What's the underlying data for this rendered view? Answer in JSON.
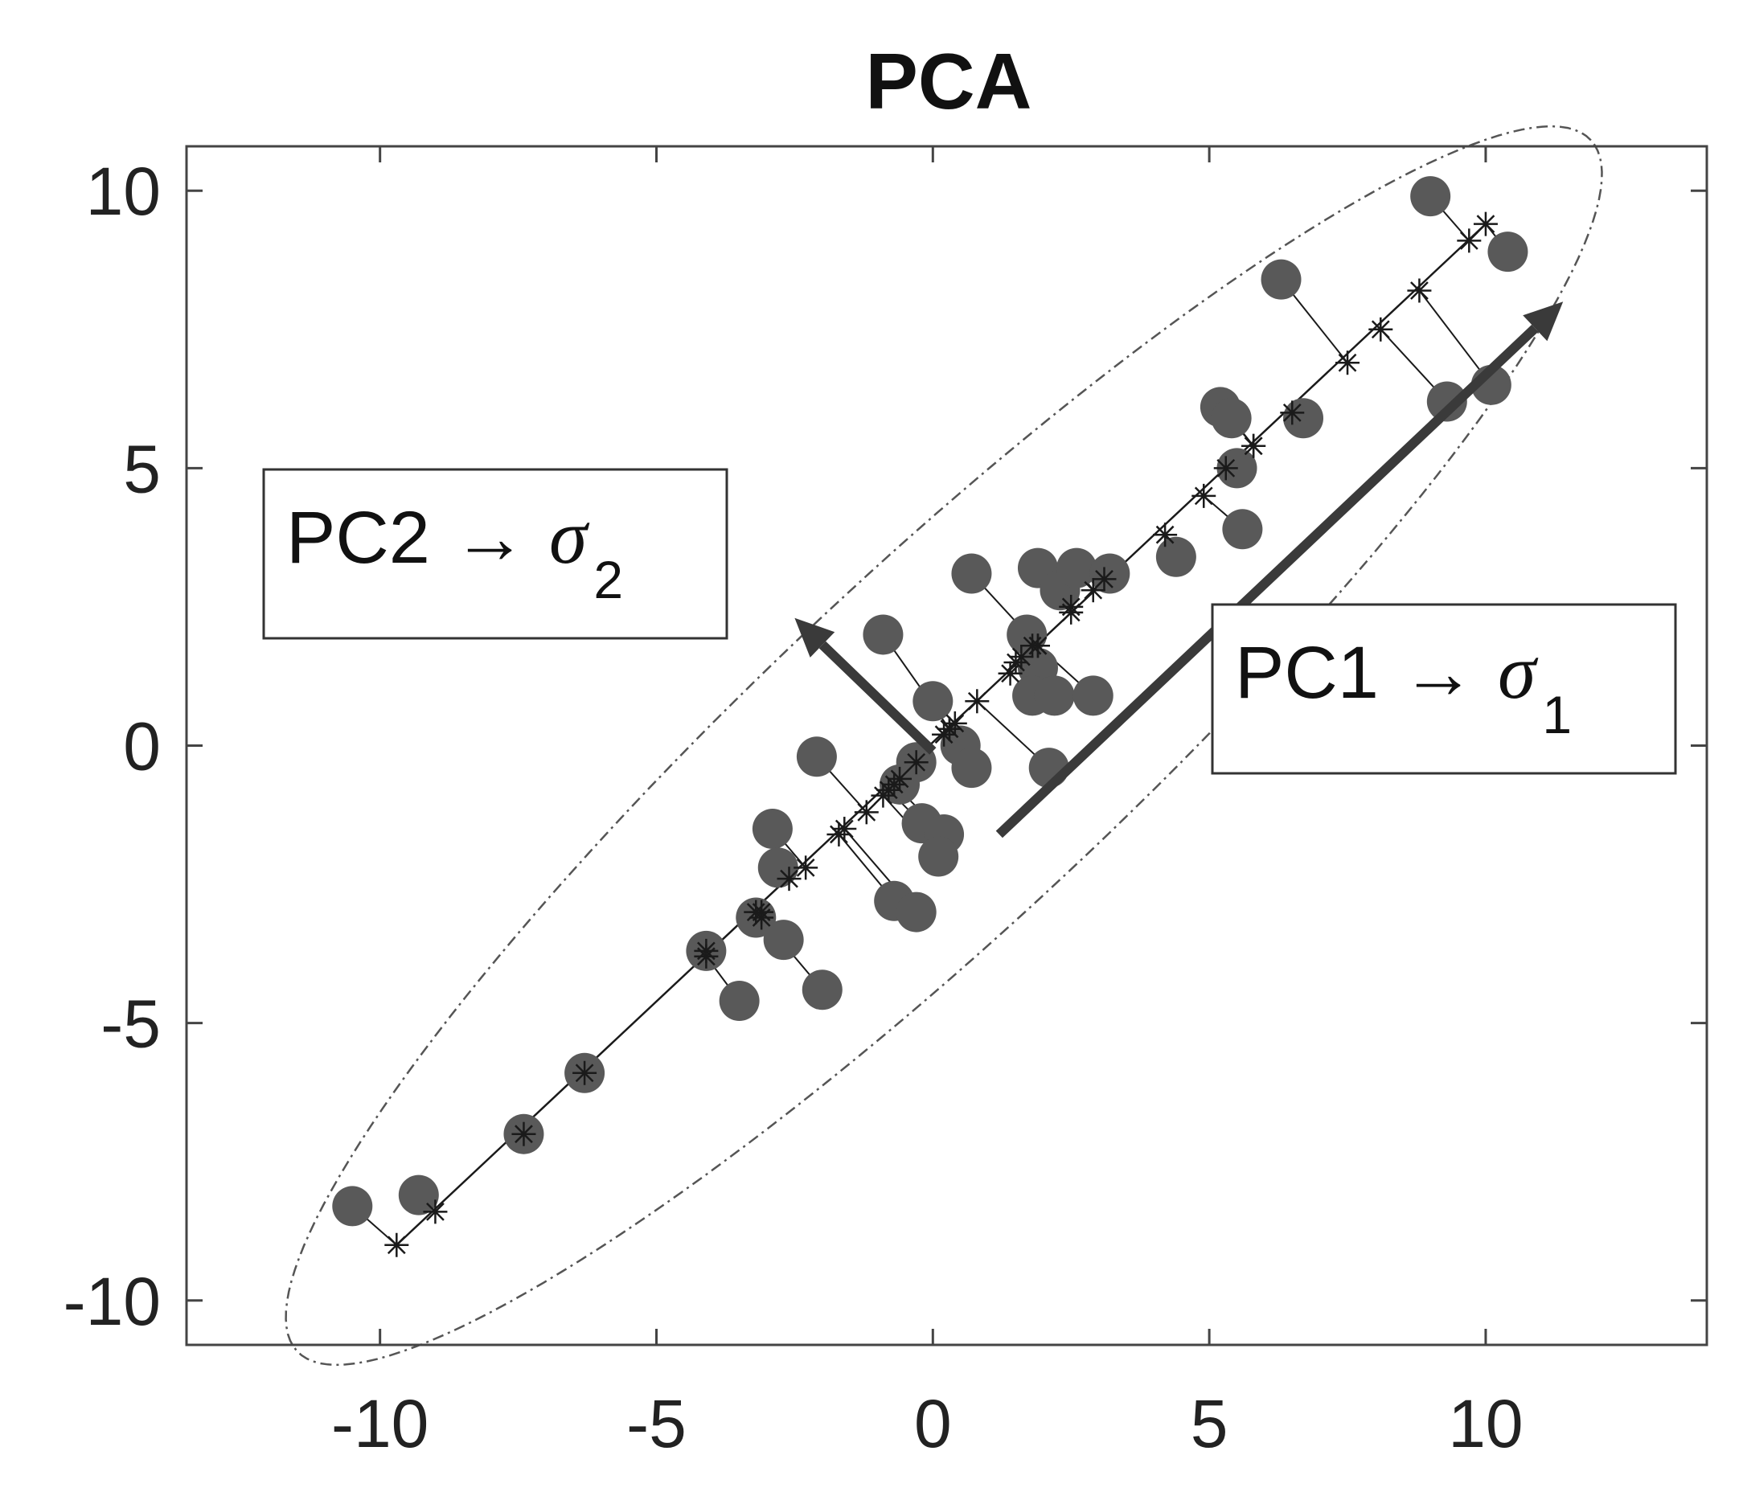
{
  "chart_data": {
    "type": "scatter",
    "title": "PCA",
    "xlabel": "",
    "ylabel": "",
    "xlim": [
      -13.5,
      14
    ],
    "ylim": [
      -10.8,
      10.8
    ],
    "xticks": [
      -10,
      -5,
      0,
      5,
      10
    ],
    "yticks": [
      -10,
      -5,
      0,
      5,
      10
    ],
    "xtick_labels": [
      "-10",
      "-5",
      "0",
      "5",
      "10"
    ],
    "ytick_labels": [
      "-10",
      "-5",
      "0",
      "5",
      "10"
    ],
    "grid": false,
    "colors": {
      "points": "#595959",
      "projection": "#1a1a1a",
      "arrows": "#3a3a3a",
      "ellipse": "#555555",
      "axes": "#444444"
    },
    "points": [
      {
        "x": -10.5,
        "y": -8.3,
        "px": -9.7,
        "py": -9.0
      },
      {
        "x": -9.3,
        "y": -8.1,
        "px": -9.0,
        "py": -8.4
      },
      {
        "x": -7.4,
        "y": -7.0,
        "px": -7.4,
        "py": -7.0
      },
      {
        "x": -6.3,
        "y": -5.9,
        "px": -6.3,
        "py": -5.9
      },
      {
        "x": -4.1,
        "y": -3.7,
        "px": -4.1,
        "py": -3.7
      },
      {
        "x": -3.5,
        "y": -4.6,
        "px": -4.1,
        "py": -3.8
      },
      {
        "x": -3.2,
        "y": -3.1,
        "px": -3.2,
        "py": -3.0
      },
      {
        "x": -2.9,
        "y": -1.5,
        "px": -2.3,
        "py": -2.2
      },
      {
        "x": -2.8,
        "y": -2.2,
        "px": -2.6,
        "py": -2.4
      },
      {
        "x": -2.7,
        "y": -3.5,
        "px": -3.1,
        "py": -3.0
      },
      {
        "x": -2.0,
        "y": -4.4,
        "px": -3.1,
        "py": -3.1
      },
      {
        "x": -2.1,
        "y": -0.2,
        "px": -1.2,
        "py": -1.2
      },
      {
        "x": -0.9,
        "y": 2.0,
        "px": 0.3,
        "py": 0.3
      },
      {
        "x": -0.6,
        "y": -0.7,
        "px": -0.6,
        "py": -0.6
      },
      {
        "x": -0.3,
        "y": -0.3,
        "px": -0.3,
        "py": -0.3
      },
      {
        "x": -0.7,
        "y": -2.8,
        "px": -1.7,
        "py": -1.6
      },
      {
        "x": -0.3,
        "y": -3.0,
        "px": -1.6,
        "py": -1.5
      },
      {
        "x": -0.2,
        "y": -1.4,
        "px": -0.8,
        "py": -0.8
      },
      {
        "x": 0.2,
        "y": -1.6,
        "px": -0.7,
        "py": -0.7
      },
      {
        "x": 0.1,
        "y": -2.0,
        "px": -0.9,
        "py": -0.9
      },
      {
        "x": 0.0,
        "y": 0.8,
        "px": 0.4,
        "py": 0.4
      },
      {
        "x": 0.5,
        "y": 0.0,
        "px": 0.3,
        "py": 0.3
      },
      {
        "x": 0.7,
        "y": -0.4,
        "px": 0.2,
        "py": 0.2
      },
      {
        "x": 0.7,
        "y": 3.1,
        "px": 1.9,
        "py": 1.8
      },
      {
        "x": 1.7,
        "y": 2.0,
        "px": 1.8,
        "py": 1.8
      },
      {
        "x": 1.9,
        "y": 1.4,
        "px": 1.6,
        "py": 1.6
      },
      {
        "x": 1.8,
        "y": 0.9,
        "px": 1.4,
        "py": 1.3
      },
      {
        "x": 1.9,
        "y": 3.2,
        "px": 2.5,
        "py": 2.4
      },
      {
        "x": 2.1,
        "y": -0.4,
        "px": 0.8,
        "py": 0.8
      },
      {
        "x": 2.2,
        "y": 0.9,
        "px": 1.5,
        "py": 1.5
      },
      {
        "x": 2.3,
        "y": 2.8,
        "px": 2.5,
        "py": 2.5
      },
      {
        "x": 2.6,
        "y": 3.2,
        "px": 2.9,
        "py": 2.8
      },
      {
        "x": 2.9,
        "y": 0.9,
        "px": 1.9,
        "py": 1.8
      },
      {
        "x": 3.2,
        "y": 3.1,
        "px": 3.1,
        "py": 3.0
      },
      {
        "x": 4.4,
        "y": 3.4,
        "px": 4.2,
        "py": 3.8
      },
      {
        "x": 5.2,
        "y": 6.1,
        "px": 5.8,
        "py": 5.4
      },
      {
        "x": 5.4,
        "y": 5.9,
        "px": 5.8,
        "py": 5.4
      },
      {
        "x": 5.5,
        "y": 5.0,
        "px": 5.3,
        "py": 5.0
      },
      {
        "x": 5.6,
        "y": 3.9,
        "px": 4.9,
        "py": 4.5
      },
      {
        "x": 6.3,
        "y": 8.4,
        "px": 7.5,
        "py": 6.9
      },
      {
        "x": 6.7,
        "y": 5.9,
        "px": 6.5,
        "py": 6.0
      },
      {
        "x": 9.0,
        "y": 9.9,
        "px": 9.7,
        "py": 9.1
      },
      {
        "x": 9.3,
        "y": 6.2,
        "px": 8.1,
        "py": 7.5
      },
      {
        "x": 10.4,
        "y": 8.9,
        "px": 10.0,
        "py": 9.4
      },
      {
        "x": 10.1,
        "y": 6.5,
        "px": 8.8,
        "py": 8.2
      }
    ],
    "principal_axis": {
      "start": [
        -9.7,
        -9.0
      ],
      "end": [
        10.0,
        9.4
      ]
    },
    "ellipse": {
      "center": [
        0.2,
        0.0
      ],
      "semi_major": 16.0,
      "semi_minor": 3.2,
      "angle_deg": 43
    },
    "arrows": [
      {
        "name": "PC1",
        "from": [
          1.2,
          -1.6
        ],
        "to": [
          11.4,
          8.0
        ]
      },
      {
        "name": "PC2",
        "from": [
          0.0,
          -0.1
        ],
        "to": [
          -2.5,
          2.3
        ]
      }
    ],
    "annotations": {
      "pc2": {
        "prefix": "PC2",
        "arrow": "→",
        "symbol": "σ",
        "subscript": "2"
      },
      "pc1": {
        "prefix": "PC1",
        "arrow": "→",
        "symbol": "σ",
        "subscript": "1"
      }
    }
  }
}
